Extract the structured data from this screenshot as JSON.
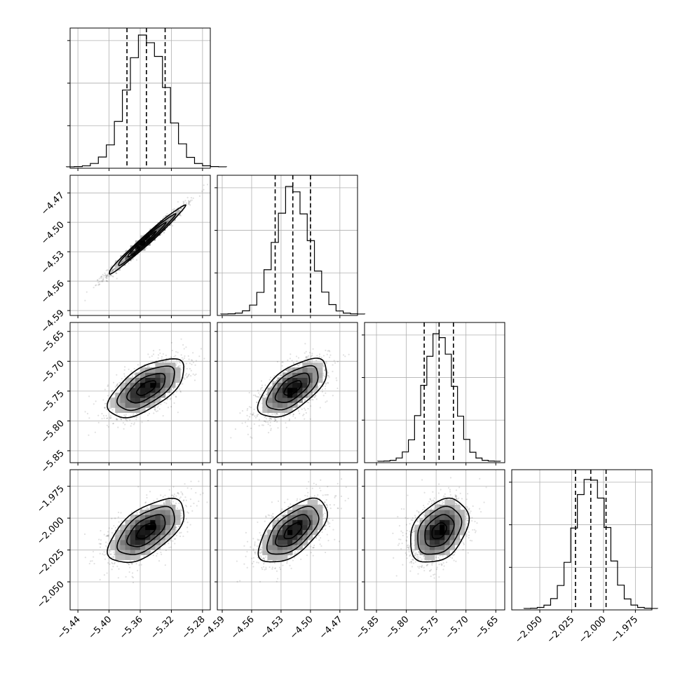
{
  "chart_data": {
    "type": "corner",
    "grid_lines": true,
    "parameters": [
      {
        "mean": -5.352,
        "sd": 0.0245,
        "range": [
          -5.45,
          -5.27
        ],
        "ticks": [
          -5.44,
          -5.4,
          -5.36,
          -5.32,
          -5.28
        ],
        "tick_labels": [
          "−5.44",
          "−5.40",
          "−5.36",
          "−5.32",
          "−5.28"
        ],
        "quantiles": [
          -5.377,
          -5.352,
          -5.328
        ],
        "histogram_peak": 0.95
      },
      {
        "mean": -4.518,
        "sd": 0.0175,
        "range": [
          -4.595,
          -4.452
        ],
        "ticks": [
          -4.59,
          -4.56,
          -4.53,
          -4.5,
          -4.47
        ],
        "tick_labels": [
          "−4.59",
          "−4.56",
          "−4.53",
          "−4.50",
          "−4.47"
        ],
        "quantiles": [
          -4.536,
          -4.518,
          -4.5
        ],
        "histogram_peak": 0.92
      },
      {
        "mean": -5.745,
        "sd": 0.0245,
        "range": [
          -5.87,
          -5.635
        ],
        "ticks": [
          -5.85,
          -5.8,
          -5.75,
          -5.7,
          -5.65
        ],
        "tick_labels": [
          "−5.85",
          "−5.80",
          "−5.75",
          "−5.70",
          "−5.65"
        ],
        "quantiles": [
          -5.77,
          -5.745,
          -5.721
        ],
        "histogram_peak": 0.92
      },
      {
        "mean": -2.01,
        "sd": 0.0125,
        "range": [
          -2.072,
          -1.962
        ],
        "ticks": [
          -2.05,
          -2.025,
          -2.0,
          -1.975
        ],
        "tick_labels": [
          "−2.050",
          "−2.025",
          "−2.000",
          "−1.975"
        ],
        "quantiles": [
          -2.022,
          -2.01,
          -1.998
        ],
        "histogram_peak": 0.93
      }
    ],
    "correlations": [
      {
        "pair": [
          1,
          0
        ],
        "rho": 0.985
      },
      {
        "pair": [
          2,
          0
        ],
        "rho": 0.62
      },
      {
        "pair": [
          2,
          1
        ],
        "rho": 0.62
      },
      {
        "pair": [
          3,
          0
        ],
        "rho": 0.6
      },
      {
        "pair": [
          3,
          1
        ],
        "rho": 0.6
      },
      {
        "pair": [
          3,
          2
        ],
        "rho": 0.35
      }
    ],
    "contour_levels_sigma": [
      0.5,
      1.0,
      1.5,
      2.0
    ]
  }
}
